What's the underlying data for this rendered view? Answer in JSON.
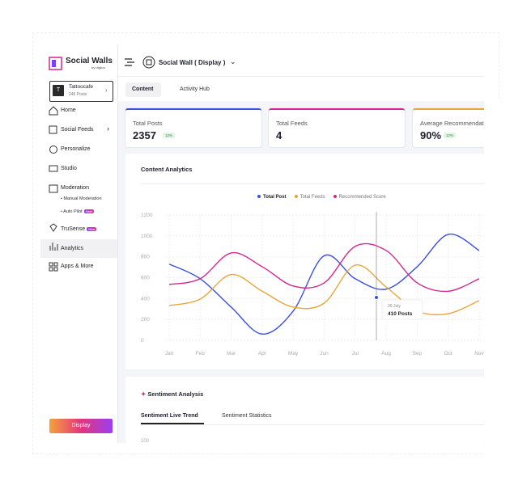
{
  "sidebar": {
    "brand": "Social Walls",
    "brand_sub": "by tagbox",
    "account": {
      "initial": "T",
      "name": "Tattoocafe",
      "posts": "246 Posts"
    },
    "nav": [
      "Home",
      "Social Feeds",
      "Personalize",
      "Studio",
      "Moderation"
    ],
    "sub_nav": [
      "• Manual Moderation",
      "• Auto Pilot"
    ],
    "badge": "New",
    "nav2": [
      "TruSense",
      "Analytics",
      "Apps & More"
    ],
    "button": "Display"
  },
  "header": {
    "title": "Social Wall ( Display )",
    "tabs": [
      "Content",
      "Activity Hub"
    ]
  },
  "cards": [
    {
      "label": "Total Posts",
      "value": "2357",
      "change": "12%"
    },
    {
      "label": "Total Feeds",
      "value": "4"
    },
    {
      "label": "Average Recommendation Score",
      "value": "90%",
      "change": "12%"
    }
  ],
  "chart_data": {
    "type": "line",
    "title": "Content Analytics",
    "categories": [
      "Jan",
      "Feb",
      "Mar",
      "Apr",
      "May",
      "Jun",
      "Jul",
      "Aug",
      "Sep",
      "Oct",
      "Nov"
    ],
    "series": [
      {
        "name": "Total Post",
        "color": "#3b4fe0",
        "values": [
          730,
          590,
          318,
          60,
          280,
          810,
          590,
          490,
          705,
          1015,
          860
        ]
      },
      {
        "name": "Total Feeds",
        "color": "#e8a63a",
        "values": [
          333,
          395,
          630,
          470,
          318,
          356,
          720,
          510,
          280,
          255,
          380
        ]
      },
      {
        "name": "Recommended Score",
        "color": "#d4268e",
        "values": [
          535,
          590,
          837,
          705,
          520,
          550,
          900,
          860,
          550,
          470,
          590
        ]
      }
    ],
    "ylim": [
      0,
      1200
    ],
    "yticks": [
      0,
      200,
      400,
      600,
      800,
      1000,
      1200
    ],
    "grid": true,
    "tooltip": {
      "date": "26 July",
      "text": "410 Posts",
      "value": 410
    }
  },
  "sentiment": {
    "title": "Sentiment Analysis",
    "tabs": [
      "Sentiment Live Trend",
      "Sentiment Statistics"
    ],
    "ytick": "100"
  }
}
